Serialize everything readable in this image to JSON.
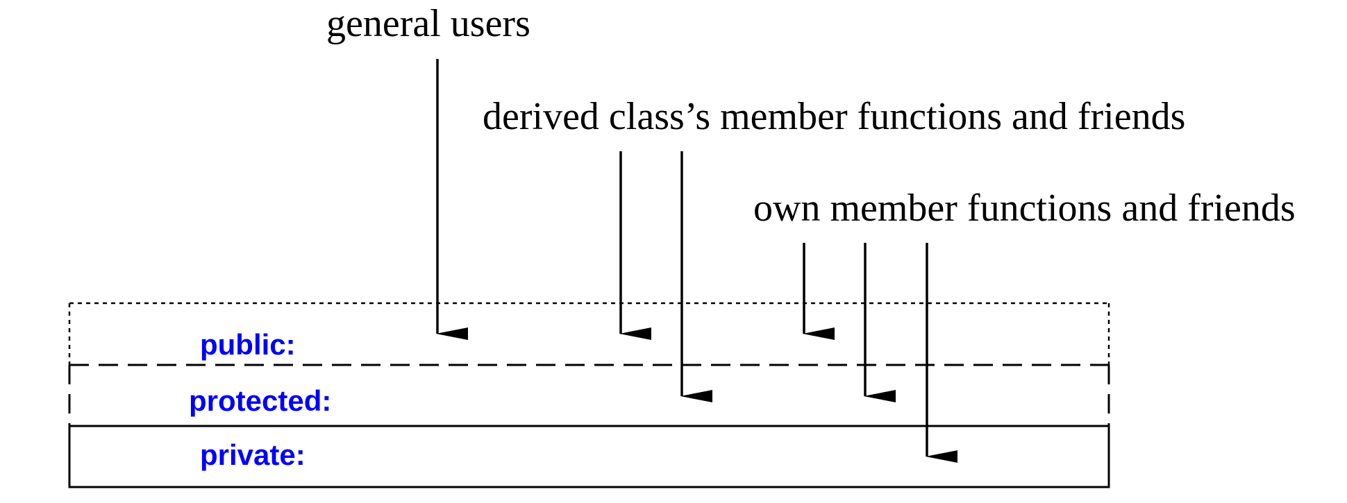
{
  "colors": {
    "ink": "#000000",
    "section_label": "#0000ff",
    "background": "#ffffff"
  },
  "accessors": {
    "general_users": "general users",
    "derived_class": "derived class’s member functions and friends",
    "own_members": "own member functions and friends"
  },
  "sections": {
    "public": "public:",
    "protected": "protected:",
    "private": "private:"
  }
}
